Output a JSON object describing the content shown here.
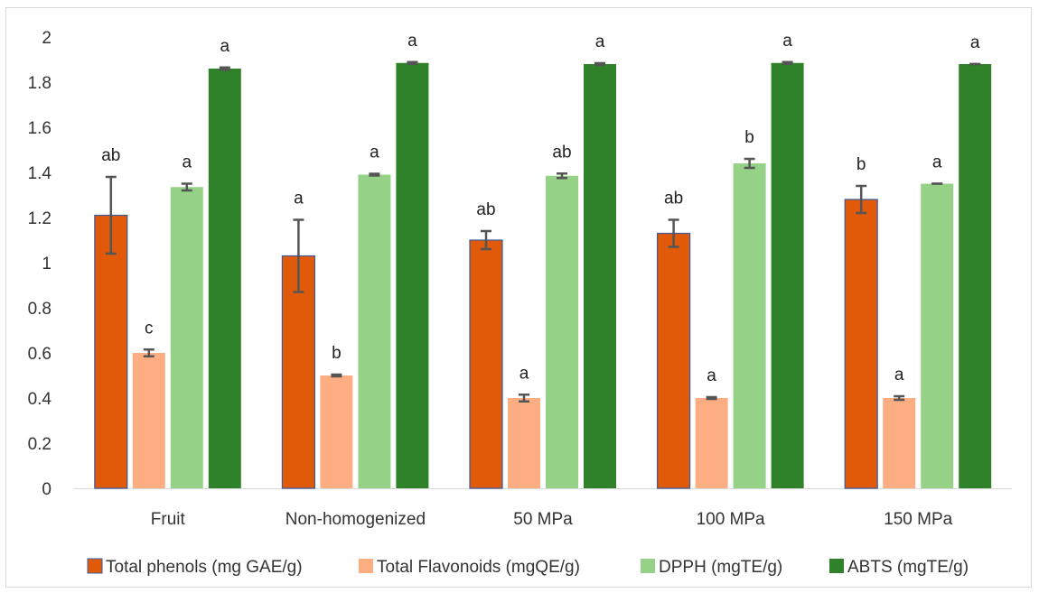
{
  "chart_data": {
    "type": "bar",
    "categories": [
      "Fruit",
      "Non-homogenized",
      "50 MPa",
      "100 MPa",
      "150 MPa"
    ],
    "ylim": [
      0,
      2
    ],
    "yticks": [
      "0",
      "0.2",
      "0.4",
      "0.6",
      "0.8",
      "1",
      "1.2",
      "1.4",
      "1.6",
      "1.8",
      "2"
    ],
    "series": [
      {
        "name": "Total phenols (mg GAE/g)",
        "color": "#e05a0a",
        "values": [
          1.21,
          1.03,
          1.1,
          1.13,
          1.28
        ],
        "errors": [
          0.17,
          0.16,
          0.04,
          0.06,
          0.06
        ],
        "letters": [
          "ab",
          "a",
          "ab",
          "ab",
          "b"
        ]
      },
      {
        "name": "Total Flavonoids (mgQE/g)",
        "color": "#fcae82",
        "values": [
          0.6,
          0.5,
          0.4,
          0.4,
          0.4
        ],
        "errors": [
          0.015,
          0.004,
          0.015,
          0.004,
          0.008
        ],
        "letters": [
          "c",
          "b",
          "a",
          "a",
          "a"
        ]
      },
      {
        "name": "DPPH (mgTE/g)",
        "color": "#95d288",
        "values": [
          1.335,
          1.39,
          1.385,
          1.44,
          1.35
        ],
        "errors": [
          0.015,
          0.004,
          0.01,
          0.02,
          0.0
        ],
        "letters": [
          "a",
          "a",
          "ab",
          "b",
          "a"
        ]
      },
      {
        "name": "ABTS (mgTE/g)",
        "color": "#2f8229",
        "values": [
          1.86,
          1.885,
          1.88,
          1.885,
          1.88
        ],
        "errors": [
          0.005,
          0.004,
          0.004,
          0.004,
          0.0
        ],
        "letters": [
          "a",
          "a",
          "a",
          "a",
          "a"
        ]
      }
    ],
    "grid": false,
    "legend": "bottom"
  }
}
